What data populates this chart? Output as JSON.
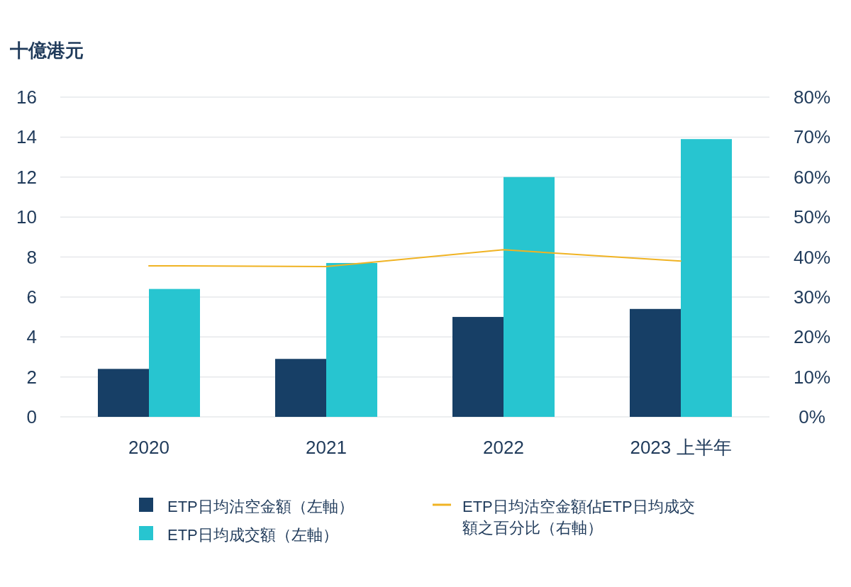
{
  "chart_data": {
    "type": "bar",
    "ylabel": "十億港元",
    "categories": [
      "2020",
      "2021",
      "2022",
      "2023 上半年"
    ],
    "series": [
      {
        "name": "ETP日均沽空金額（左軸）",
        "color": "#173f66",
        "values": [
          2.4,
          2.9,
          5.0,
          5.4
        ]
      },
      {
        "name": "ETP日均成交額（左軸）",
        "color": "#27c5d0",
        "values": [
          6.4,
          7.7,
          12.0,
          13.9
        ]
      },
      {
        "name": "ETP日均沽空金額佔ETP日均成交額之百分比（右軸）",
        "type": "line",
        "axis": "y2",
        "color": "#f0b323",
        "values": [
          37.8,
          37.6,
          41.8,
          39.0
        ]
      }
    ],
    "ylim": [
      0,
      16
    ],
    "yticks": [
      0,
      2,
      4,
      6,
      8,
      10,
      12,
      14,
      16
    ],
    "y2lim": [
      0,
      80
    ],
    "y2ticks": [
      {
        "value": 0,
        "label": "0%"
      },
      {
        "value": 10,
        "label": "10%"
      },
      {
        "value": 20,
        "label": "20%"
      },
      {
        "value": 30,
        "label": "30%"
      },
      {
        "value": 40,
        "label": "40%"
      },
      {
        "value": 50,
        "label": "50%"
      },
      {
        "value": 60,
        "label": "60%"
      },
      {
        "value": 70,
        "label": "70%"
      },
      {
        "value": 80,
        "label": "80%"
      }
    ],
    "grid": "y",
    "legend": "bottom"
  }
}
